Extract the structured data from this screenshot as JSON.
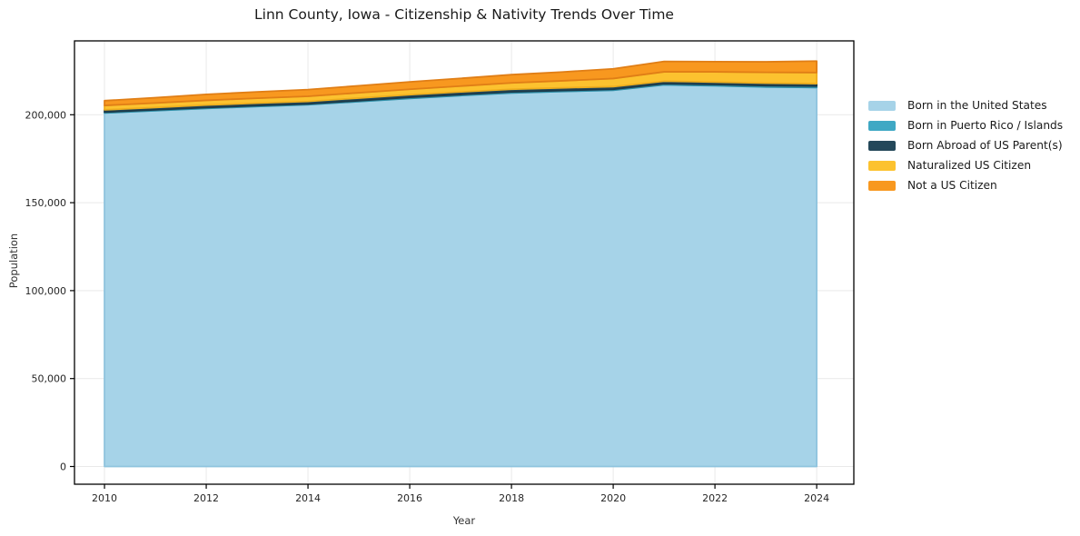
{
  "figure": {
    "title": "Linn County, Iowa - Citizenship & Nativity Trends Over Time",
    "xlabel": "Year",
    "ylabel": "Population"
  },
  "colors": {
    "background": "#ffffff",
    "spine": "#000000",
    "gridline": "#e9e9e9",
    "tick_label": "#262626",
    "title_text": "#1a1a1a"
  },
  "chart_data": {
    "type": "area",
    "stacked": true,
    "title": "Linn County, Iowa - Citizenship & Nativity Trends Over Time",
    "xlabel": "Year",
    "ylabel": "Population",
    "x": [
      2010,
      2011,
      2012,
      2013,
      2014,
      2015,
      2016,
      2017,
      2018,
      2019,
      2020,
      2021,
      2022,
      2023,
      2024
    ],
    "series": [
      {
        "name": "Born in the United States",
        "color": "#a6d3e8",
        "edge": "#8fc4de",
        "values": [
          201000,
          202300,
          203600,
          204700,
          205700,
          207500,
          209300,
          210900,
          212400,
          213200,
          213900,
          217000,
          216500,
          215800,
          215500
        ]
      },
      {
        "name": "Born in Puerto Rico / Islands",
        "color": "#3fa8c4",
        "edge": "#2e8fa8",
        "values": [
          500,
          500,
          500,
          500,
          500,
          500,
          600,
          600,
          600,
          600,
          600,
          700,
          700,
          800,
          800
        ]
      },
      {
        "name": "Born Abroad of US Parent(s)",
        "color": "#24485a",
        "edge": "#1c3a4a",
        "values": [
          1300,
          1300,
          1400,
          1400,
          1400,
          1500,
          1500,
          1500,
          1500,
          1500,
          1500,
          1400,
          1400,
          1400,
          1400
        ]
      },
      {
        "name": "Naturalized US Citizen",
        "color": "#fcc22f",
        "edge": "#efae1e",
        "values": [
          2500,
          2600,
          2700,
          2800,
          2900,
          3000,
          3100,
          3300,
          3600,
          4000,
          4600,
          5300,
          5800,
          6100,
          6300
        ]
      },
      {
        "name": "Not a US Citizen",
        "color": "#f8981f",
        "edge": "#e07e16",
        "values": [
          2700,
          3000,
          3400,
          3600,
          3800,
          4000,
          4200,
          4400,
          4700,
          5000,
          5500,
          5900,
          5800,
          6000,
          6500
        ]
      }
    ],
    "xticks": [
      2010,
      2012,
      2014,
      2016,
      2018,
      2020,
      2022,
      2024
    ],
    "yticks": [
      0,
      50000,
      100000,
      150000,
      200000
    ],
    "xlim": [
      2009.41,
      2024.73
    ],
    "ylim": [
      0,
      242000
    ],
    "grid": true,
    "legend_position": "right"
  }
}
